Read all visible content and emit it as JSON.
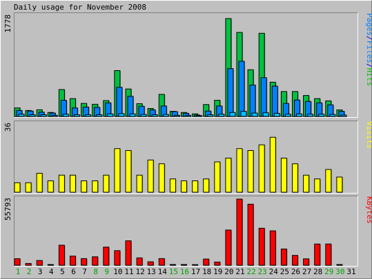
{
  "chart_data": [
    {
      "type": "bar",
      "title": "Daily usage for November 2008",
      "ylabel_parts": [
        {
          "text": "Pages",
          "color": "#0080ff"
        },
        {
          "text": "/",
          "color": "#0000ff"
        },
        {
          "text": "Files",
          "color": "#0080ff"
        },
        {
          "text": "/",
          "color": "#0000ff"
        },
        {
          "text": "Hits",
          "color": "#00c000"
        }
      ],
      "ymax_label": "1778",
      "ylim": [
        0,
        1778
      ],
      "categories": [
        "1",
        "2",
        "3",
        "4",
        "5",
        "6",
        "7",
        "8",
        "9",
        "10",
        "11",
        "12",
        "13",
        "14",
        "15",
        "16",
        "17",
        "18",
        "19",
        "20",
        "21",
        "22",
        "23",
        "24",
        "25",
        "26",
        "27",
        "28",
        "29",
        "30",
        "31"
      ],
      "series": [
        {
          "name": "Hits",
          "color": "#00c040",
          "values": [
            150,
            105,
            117,
            70,
            475,
            315,
            230,
            215,
            280,
            810,
            485,
            225,
            140,
            390,
            90,
            70,
            45,
            210,
            285,
            1730,
            1485,
            825,
            1470,
            605,
            440,
            440,
            370,
            315,
            275,
            115,
            0
          ]
        },
        {
          "name": "Files",
          "color": "#0080ff",
          "values": [
            105,
            95,
            75,
            60,
            285,
            150,
            165,
            160,
            240,
            515,
            355,
            180,
            115,
            185,
            85,
            55,
            25,
            95,
            185,
            845,
            975,
            555,
            685,
            535,
            230,
            290,
            265,
            240,
            205,
            90,
            0
          ]
        },
        {
          "name": "Pages",
          "color": "#00c0ff",
          "values": [
            40,
            30,
            30,
            20,
            40,
            30,
            30,
            30,
            45,
            50,
            45,
            35,
            30,
            35,
            20,
            20,
            15,
            30,
            40,
            70,
            90,
            60,
            65,
            55,
            40,
            45,
            40,
            40,
            35,
            25,
            0
          ]
        }
      ]
    },
    {
      "type": "bar",
      "ylabel_parts": [
        {
          "text": "Visits",
          "color": "#ffff00"
        }
      ],
      "ymax_label": "36",
      "ylim": [
        0,
        36
      ],
      "categories": [
        "1",
        "2",
        "3",
        "4",
        "5",
        "6",
        "7",
        "8",
        "9",
        "10",
        "11",
        "12",
        "13",
        "14",
        "15",
        "16",
        "17",
        "18",
        "19",
        "20",
        "21",
        "22",
        "23",
        "24",
        "25",
        "26",
        "27",
        "28",
        "29",
        "30",
        "31"
      ],
      "series": [
        {
          "name": "Visits",
          "color": "#ffff00",
          "values": [
            5,
            5,
            10,
            6,
            9,
            9,
            6,
            6,
            9,
            23,
            22,
            9,
            17,
            15,
            7,
            6,
            6,
            7,
            16,
            18,
            23,
            22,
            25,
            29,
            18,
            15,
            9,
            7,
            12,
            8,
            0
          ]
        }
      ]
    },
    {
      "type": "bar",
      "ylabel_parts": [
        {
          "text": "KBytes",
          "color": "#ff0000"
        }
      ],
      "ymax_label": "55793",
      "ylim": [
        0,
        55793
      ],
      "categories": [
        "1",
        "2",
        "3",
        "4",
        "5",
        "6",
        "7",
        "8",
        "9",
        "10",
        "11",
        "12",
        "13",
        "14",
        "15",
        "16",
        "17",
        "18",
        "19",
        "20",
        "21",
        "22",
        "23",
        "24",
        "25",
        "26",
        "27",
        "28",
        "29",
        "30",
        "31"
      ],
      "series": [
        {
          "name": "KBytes",
          "color": "#ff0000",
          "values": [
            5500,
            1500,
            4000,
            600,
            16900,
            7700,
            5600,
            7100,
            15300,
            12300,
            20600,
            6200,
            2900,
            5600,
            600,
            600,
            500,
            5200,
            2700,
            29700,
            55793,
            51500,
            31200,
            29000,
            13700,
            8300,
            5400,
            17900,
            17900,
            600,
            0
          ]
        }
      ]
    }
  ],
  "weekend_days": [
    "1",
    "2",
    "8",
    "9",
    "15",
    "16",
    "22",
    "23",
    "29",
    "30"
  ],
  "colors": {
    "weekend_label": "#00a000",
    "weekday_label": "#000000",
    "background": "#c0c0c0"
  }
}
